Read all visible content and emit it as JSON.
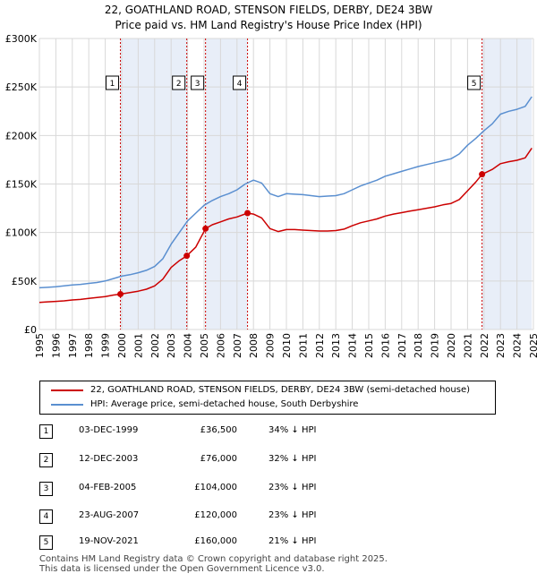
{
  "title_line1": "22, GOATHLAND ROAD, STENSON FIELDS, DERBY, DE24 3BW",
  "title_line2": "Price paid vs. HM Land Registry's House Price Index (HPI)",
  "colors": {
    "property": "#cc0000",
    "hpi": "#5a8fd0",
    "band": "#e8eef8",
    "grid": "#d8d8d8"
  },
  "chart_data": {
    "type": "line",
    "title": "22, GOATHLAND ROAD, STENSON FIELDS, DERBY, DE24 3BW — Price paid vs. HM Land Registry's House Price Index (HPI)",
    "xlabel": "",
    "ylabel": "",
    "xlim": [
      1995,
      2025
    ],
    "ylim": [
      0,
      300000
    ],
    "y_ticks": [
      0,
      50000,
      100000,
      150000,
      200000,
      250000,
      300000
    ],
    "y_tick_labels": [
      "£0",
      "£50K",
      "£100K",
      "£150K",
      "£200K",
      "£250K",
      "£300K"
    ],
    "x_ticks": [
      1995,
      1996,
      1997,
      1998,
      1999,
      2000,
      2001,
      2002,
      2003,
      2004,
      2005,
      2006,
      2007,
      2008,
      2009,
      2010,
      2011,
      2012,
      2013,
      2014,
      2015,
      2016,
      2017,
      2018,
      2019,
      2020,
      2021,
      2022,
      2023,
      2024,
      2025
    ],
    "grid": true,
    "series": [
      {
        "name": "HPI: Average price, semi-detached house, South Derbyshire",
        "color": "#5a8fd0",
        "x": [
          1995.0,
          1995.5,
          1996.0,
          1996.5,
          1997.0,
          1997.5,
          1998.0,
          1998.5,
          1999.0,
          1999.5,
          2000.0,
          2000.5,
          2001.0,
          2001.5,
          2002.0,
          2002.5,
          2003.0,
          2003.5,
          2004.0,
          2004.5,
          2005.0,
          2005.5,
          2006.0,
          2006.5,
          2007.0,
          2007.5,
          2008.0,
          2008.5,
          2009.0,
          2009.5,
          2010.0,
          2010.5,
          2011.0,
          2011.5,
          2012.0,
          2012.5,
          2013.0,
          2013.5,
          2014.0,
          2014.5,
          2015.0,
          2015.5,
          2016.0,
          2016.5,
          2017.0,
          2017.5,
          2018.0,
          2018.5,
          2019.0,
          2019.5,
          2020.0,
          2020.5,
          2021.0,
          2021.5,
          2022.0,
          2022.5,
          2023.0,
          2023.5,
          2024.0,
          2024.5,
          2024.9
        ],
        "y": [
          43000,
          43500,
          44000,
          45000,
          46000,
          46500,
          47500,
          48500,
          50000,
          52500,
          55000,
          56500,
          58500,
          61000,
          65000,
          73000,
          88000,
          100000,
          112000,
          120000,
          128000,
          133000,
          137000,
          140000,
          144000,
          150000,
          154000,
          151000,
          140000,
          137000,
          140000,
          139500,
          139000,
          138000,
          137000,
          137500,
          138000,
          140000,
          144000,
          148000,
          151000,
          154000,
          158000,
          160500,
          163000,
          165500,
          168000,
          170000,
          172000,
          174000,
          176000,
          181000,
          190000,
          197000,
          205000,
          212000,
          222000,
          225000,
          227000,
          230000,
          240000
        ]
      },
      {
        "name": "22, GOATHLAND ROAD, STENSON FIELDS, DERBY, DE24 3BW (semi-detached house)",
        "color": "#cc0000",
        "x": [
          1995.0,
          1995.5,
          1996.0,
          1996.5,
          1997.0,
          1997.5,
          1998.0,
          1998.5,
          1999.0,
          1999.5,
          1999.92,
          2000.5,
          2001.0,
          2001.5,
          2002.0,
          2002.5,
          2003.0,
          2003.5,
          2003.95,
          2004.5,
          2005.09,
          2005.5,
          2006.0,
          2006.5,
          2007.0,
          2007.64,
          2008.0,
          2008.5,
          2009.0,
          2009.5,
          2010.0,
          2010.5,
          2011.0,
          2011.5,
          2012.0,
          2012.5,
          2013.0,
          2013.5,
          2014.0,
          2014.5,
          2015.0,
          2015.5,
          2016.0,
          2016.5,
          2017.0,
          2017.5,
          2018.0,
          2018.5,
          2019.0,
          2019.5,
          2020.0,
          2020.5,
          2021.0,
          2021.5,
          2021.88,
          2022.5,
          2023.0,
          2023.5,
          2024.0,
          2024.5,
          2024.9
        ],
        "y": [
          28000,
          28500,
          29000,
          29500,
          30500,
          31000,
          32000,
          33000,
          34000,
          35500,
          36500,
          38000,
          39500,
          41500,
          45000,
          52000,
          64000,
          71000,
          76000,
          85000,
          104000,
          108000,
          111000,
          114000,
          116000,
          120000,
          119000,
          115000,
          104000,
          101000,
          103000,
          103000,
          102500,
          102000,
          101500,
          101500,
          102000,
          103500,
          107000,
          110000,
          112000,
          114000,
          117000,
          119000,
          120500,
          122000,
          123500,
          125000,
          126500,
          128500,
          130000,
          134000,
          143000,
          152000,
          160000,
          165000,
          171000,
          173000,
          174500,
          177000,
          187000
        ]
      }
    ],
    "sales": [
      {
        "id": "1",
        "x": 1999.92,
        "price": 36500
      },
      {
        "id": "2",
        "x": 2003.95,
        "price": 76000
      },
      {
        "id": "3",
        "x": 2005.09,
        "price": 104000
      },
      {
        "id": "4",
        "x": 2007.64,
        "price": 120000
      },
      {
        "id": "5",
        "x": 2021.88,
        "price": 160000
      }
    ],
    "bands": [
      [
        1999.92,
        2003.95
      ],
      [
        2005.09,
        2007.64
      ],
      [
        2021.88,
        2024.9
      ]
    ]
  },
  "legend": {
    "property_label": "22, GOATHLAND ROAD, STENSON FIELDS, DERBY, DE24 3BW (semi-detached house)",
    "hpi_label": "HPI: Average price, semi-detached house, South Derbyshire"
  },
  "sales_table": [
    {
      "num": "1",
      "date": "03-DEC-1999",
      "price": "£36,500",
      "hpi": "34% ↓ HPI"
    },
    {
      "num": "2",
      "date": "12-DEC-2003",
      "price": "£76,000",
      "hpi": "32% ↓ HPI"
    },
    {
      "num": "3",
      "date": "04-FEB-2005",
      "price": "£104,000",
      "hpi": "23% ↓ HPI"
    },
    {
      "num": "4",
      "date": "23-AUG-2007",
      "price": "£120,000",
      "hpi": "23% ↓ HPI"
    },
    {
      "num": "5",
      "date": "19-NOV-2021",
      "price": "£160,000",
      "hpi": "21% ↓ HPI"
    }
  ],
  "footer_line1": "Contains HM Land Registry data © Crown copyright and database right 2025.",
  "footer_line2": "This data is licensed under the Open Government Licence v3.0."
}
